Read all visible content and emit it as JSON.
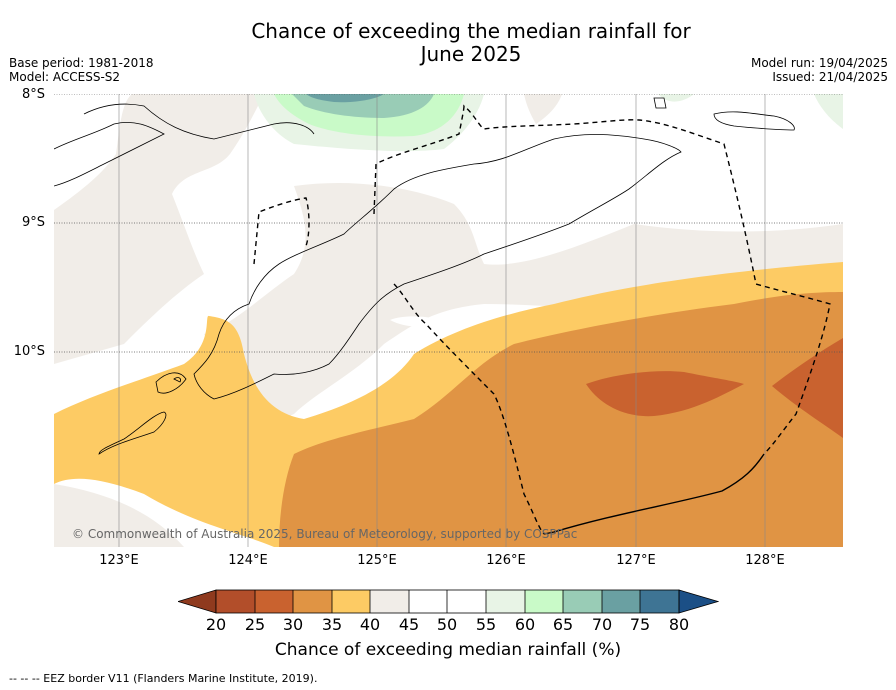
{
  "title": {
    "line1": "Chance of exceeding the median rainfall for",
    "line2": "June 2025"
  },
  "meta": {
    "base_period": "Base period: 1981-2018",
    "model": "Model: ACCESS-S2",
    "model_run": "Model run: 19/04/2025",
    "issued": "Issued: 21/04/2025"
  },
  "map": {
    "lat_labels": [
      "8°S",
      "9°S",
      "10°S"
    ],
    "lon_labels": [
      "123°E",
      "124°E",
      "125°E",
      "126°E",
      "127°E",
      "128°E"
    ],
    "copyright": "© Commonwealth of Australia 2025, Bureau of Meteorology, supported by COSPPac"
  },
  "colorbar": {
    "ticks": [
      "20",
      "25",
      "30",
      "35",
      "40",
      "45",
      "50",
      "55",
      "60",
      "65",
      "70",
      "75",
      "80"
    ],
    "colors": {
      "below20": "#8f3a1e",
      "c20_25": "#b24e2a",
      "c25_30": "#c9622f",
      "c30_35": "#e09444",
      "c35_40": "#fdcb64",
      "c40_45": "#f1ede8",
      "c45_55": "#ffffff",
      "c55_60": "#e8f4e6",
      "c60_65": "#c9fac8",
      "c65_70": "#99ccb6",
      "c70_75": "#6aa0a2",
      "c75_80": "#3e7494",
      "above80": "#1b4f86"
    },
    "label": "Chance of exceeding median rainfall (%)"
  },
  "footer": "-- -- -- EEZ border V11 (Flanders Marine Institute, 2019)."
}
